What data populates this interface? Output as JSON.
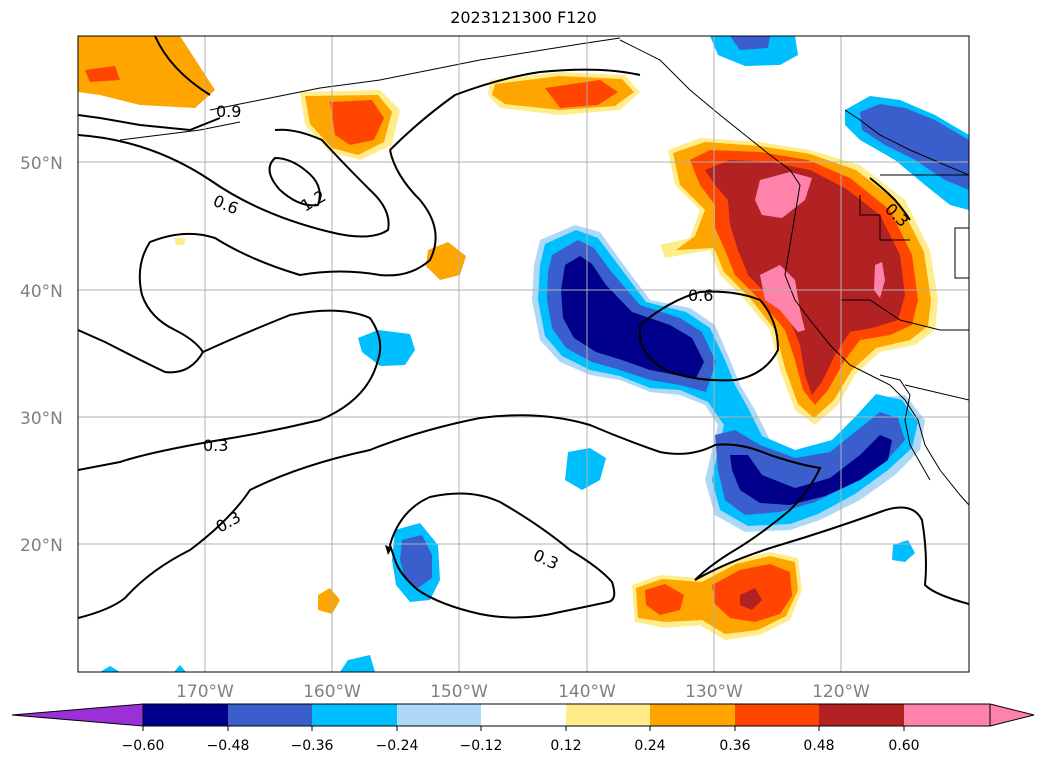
{
  "title": "2023121300 F120",
  "map": {
    "lon_labels": [
      "170°W",
      "160°W",
      "150°W",
      "140°W",
      "130°W",
      "120°W"
    ],
    "lat_labels": [
      "50°N",
      "40°N",
      "30°N",
      "20°N"
    ],
    "contour_labels": [
      "0.9",
      "0.6",
      "1.2",
      "0.3",
      "0.6",
      "0.3",
      "0.3",
      "0.3"
    ]
  },
  "colorbar": {
    "ticks": [
      "−0.60",
      "−0.48",
      "−0.36",
      "−0.24",
      "−0.12",
      "0.12",
      "0.24",
      "0.36",
      "0.48",
      "0.60"
    ],
    "colors": {
      "under": "#9b30d9",
      "levels": [
        "#00008b",
        "#3a5fcd",
        "#00bfff",
        "#add8f6",
        "#ffffff",
        "#ffec8b",
        "#ffa500",
        "#ff4500",
        "#b22222",
        "#ff82ab"
      ],
      "over": "#ff82ab"
    }
  },
  "colors": {
    "grid": "#b0b0b0",
    "tick_label": "#808080",
    "contour": "#000000"
  }
}
